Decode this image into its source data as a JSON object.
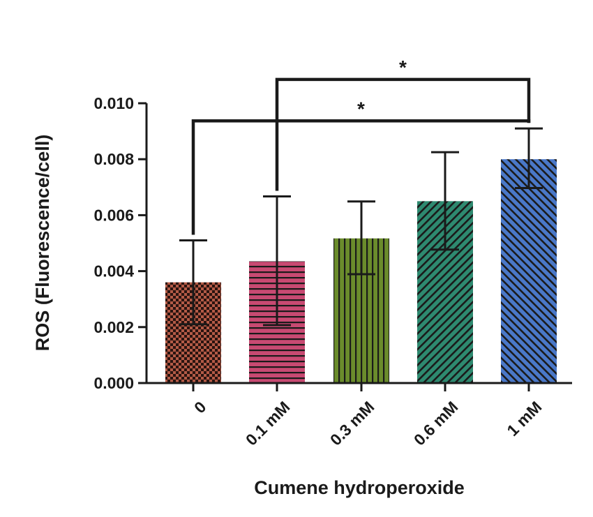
{
  "chart_data": {
    "type": "bar",
    "title": "",
    "xlabel": "Cumene hydroperoxide",
    "ylabel": "ROS (Fluorescence/cell)",
    "ylim": [
      0,
      0.01
    ],
    "yticks": [
      "0.000",
      "0.002",
      "0.004",
      "0.006",
      "0.008",
      "0.010"
    ],
    "ytick_values": [
      0,
      0.002,
      0.004,
      0.006,
      0.008,
      0.01
    ],
    "categories": [
      "0",
      "0.1 mM",
      "0.3 mM",
      "0.6 mM",
      "1 mM"
    ],
    "values": [
      0.0036,
      0.00435,
      0.00517,
      0.0065,
      0.008
    ],
    "error_upper": [
      0.0051,
      0.00667,
      0.00649,
      0.00825,
      0.0091
    ],
    "error_lower": [
      0.0021,
      0.00207,
      0.00389,
      0.00477,
      0.00697
    ],
    "bar_colors": [
      "#b35a46",
      "#c84a72",
      "#6b8c2c",
      "#2e8a70",
      "#4a78c8"
    ],
    "bar_patterns": [
      "checker",
      "horizontal",
      "vertical",
      "diag-right",
      "diag-left"
    ],
    "significance": [
      {
        "from": 1,
        "to": 4,
        "level": 0.01085,
        "label": "*"
      },
      {
        "from": 0,
        "to": 4,
        "level": 0.00937,
        "label": "*"
      }
    ],
    "grid": false,
    "legend": "none"
  }
}
